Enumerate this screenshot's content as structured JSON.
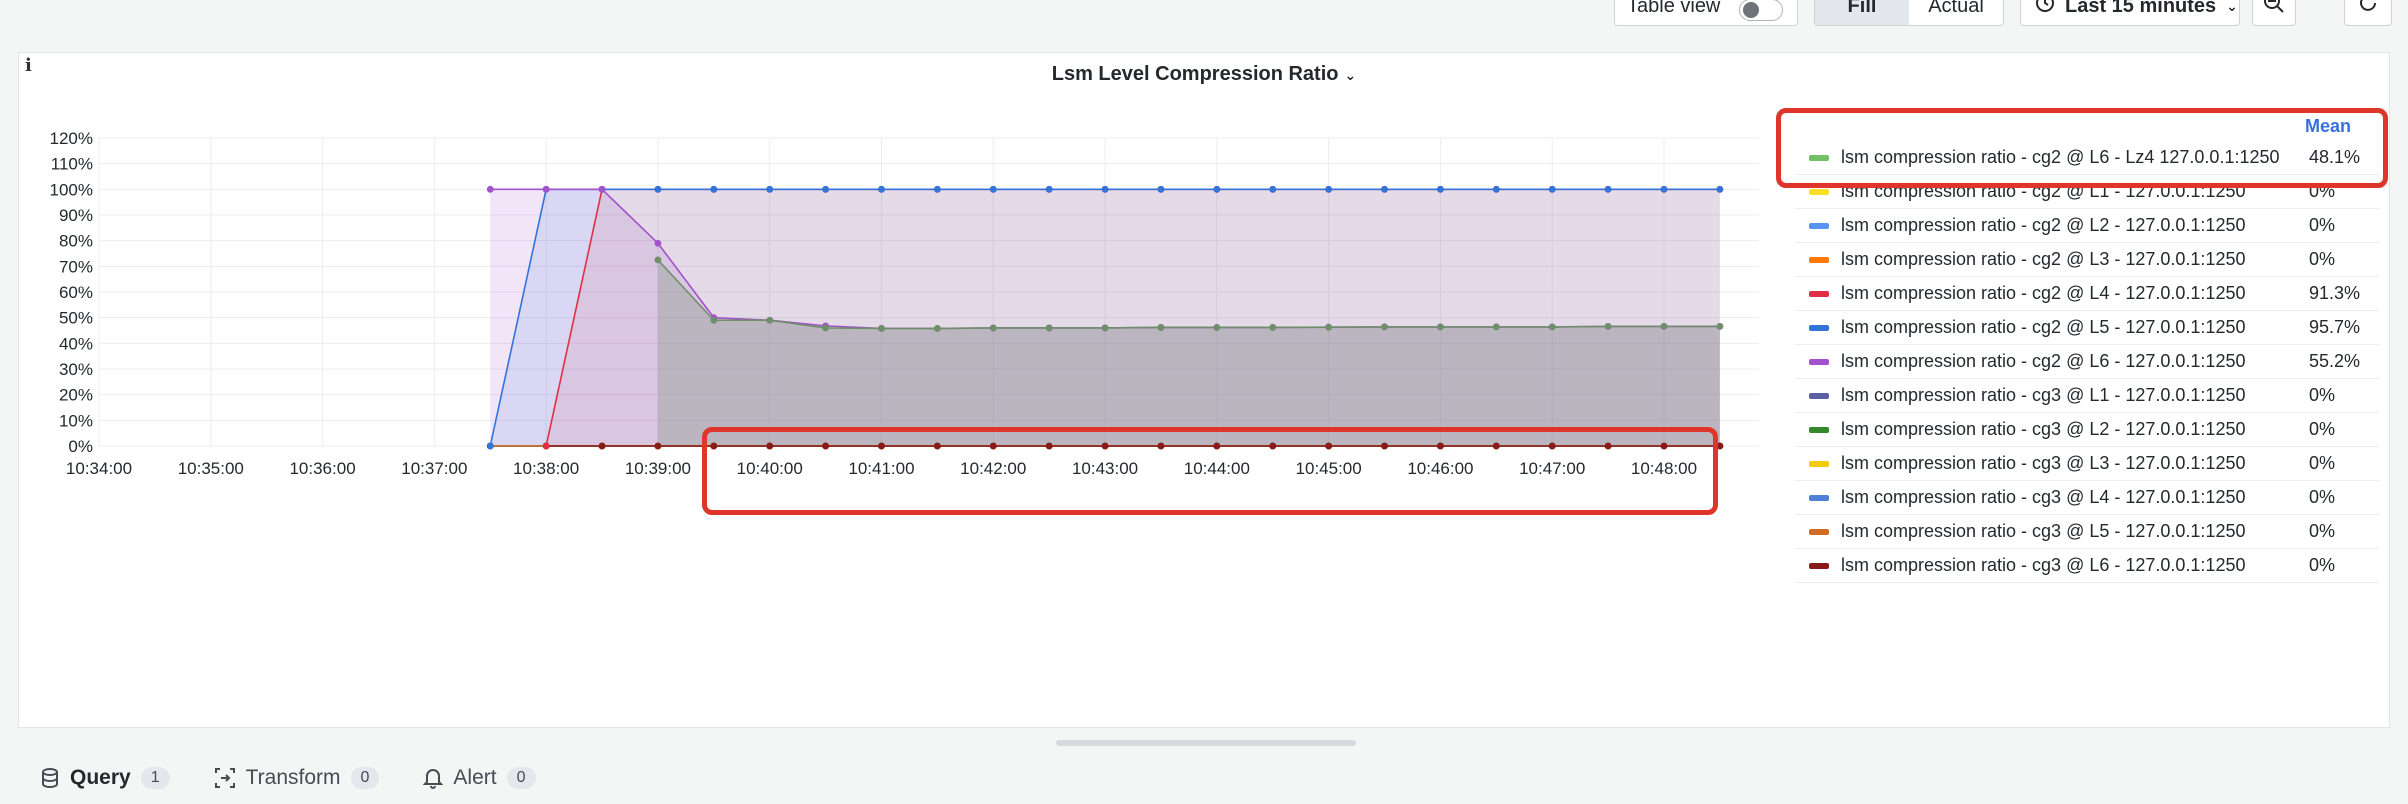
{
  "toolbar": {
    "table_view_label": "Table view",
    "fill_label": "Fill",
    "actual_label": "Actual",
    "time_range": "Last 15 minutes"
  },
  "panel": {
    "title": "Lsm Level Compression Ratio",
    "legend_header": "Mean"
  },
  "chart_data": {
    "type": "line",
    "title": "Lsm Level Compression Ratio",
    "xlabel": "",
    "ylabel": "",
    "ylim": [
      0,
      120
    ],
    "y_ticks": [
      "0%",
      "10%",
      "20%",
      "30%",
      "40%",
      "50%",
      "60%",
      "70%",
      "80%",
      "90%",
      "100%",
      "110%",
      "120%"
    ],
    "x_ticks": [
      "10:34:00",
      "10:35:00",
      "10:36:00",
      "10:37:00",
      "10:38:00",
      "10:39:00",
      "10:40:00",
      "10:41:00",
      "10:42:00",
      "10:43:00",
      "10:44:00",
      "10:45:00",
      "10:46:00",
      "10:47:00",
      "10:48:00"
    ],
    "x": [
      "10:37:30",
      "10:38:00",
      "10:38:30",
      "10:39:00",
      "10:39:30",
      "10:40:00",
      "10:40:30",
      "10:41:00",
      "10:41:30",
      "10:42:00",
      "10:42:30",
      "10:43:00",
      "10:43:30",
      "10:44:00",
      "10:44:30",
      "10:45:00",
      "10:45:30",
      "10:46:00",
      "10:46:30",
      "10:47:00",
      "10:47:30",
      "10:48:00",
      "10:48:30"
    ],
    "legend_position": "right",
    "grid": true,
    "series": [
      {
        "name": "lsm compression ratio - cg2 @ L6 - Lz4 127.0.0.1:1250",
        "mean": "48.1%",
        "color": "#73bf69",
        "values": [
          null,
          null,
          null,
          72.5,
          49,
          49,
          46,
          45.8,
          45.8,
          46,
          46,
          46,
          46.2,
          46.2,
          46.2,
          46.3,
          46.4,
          46.4,
          46.4,
          46.4,
          46.6,
          46.6,
          46.6
        ]
      },
      {
        "name": "lsm compression ratio - cg2 @ L1 - 127.0.0.1:1250",
        "mean": "0%",
        "color": "#fade2a",
        "values": [
          0,
          0,
          0,
          0,
          0,
          0,
          0,
          0,
          0,
          0,
          0,
          0,
          0,
          0,
          0,
          0,
          0,
          0,
          0,
          0,
          0,
          0,
          0
        ]
      },
      {
        "name": "lsm compression ratio - cg2 @ L2 - 127.0.0.1:1250",
        "mean": "0%",
        "color": "#5794f2",
        "values": [
          0,
          0,
          0,
          0,
          0,
          0,
          0,
          0,
          0,
          0,
          0,
          0,
          0,
          0,
          0,
          0,
          0,
          0,
          0,
          0,
          0,
          0,
          0
        ]
      },
      {
        "name": "lsm compression ratio - cg2 @ L3 - 127.0.0.1:1250",
        "mean": "0%",
        "color": "#ff780a",
        "values": [
          0,
          0,
          0,
          0,
          0,
          0,
          0,
          0,
          0,
          0,
          0,
          0,
          0,
          0,
          0,
          0,
          0,
          0,
          0,
          0,
          0,
          0,
          0
        ]
      },
      {
        "name": "lsm compression ratio - cg2 @ L4 - 127.0.0.1:1250",
        "mean": "91.3%",
        "color": "#e02f44",
        "values": [
          null,
          0,
          100,
          100,
          100,
          100,
          100,
          100,
          100,
          100,
          100,
          100,
          100,
          100,
          100,
          100,
          100,
          100,
          100,
          100,
          100,
          100,
          100
        ]
      },
      {
        "name": "lsm compression ratio - cg2 @ L5 - 127.0.0.1:1250",
        "mean": "95.7%",
        "color": "#3274d9",
        "values": [
          0,
          100,
          100,
          100,
          100,
          100,
          100,
          100,
          100,
          100,
          100,
          100,
          100,
          100,
          100,
          100,
          100,
          100,
          100,
          100,
          100,
          100,
          100
        ]
      },
      {
        "name": "lsm compression ratio - cg2 @ L6 - 127.0.0.1:1250",
        "mean": "55.2%",
        "color": "#a352cc",
        "values": [
          100,
          100,
          100,
          79,
          50,
          49,
          46.8,
          45.8,
          45.8,
          46,
          46,
          46,
          46.2,
          46.2,
          46.2,
          46.3,
          46.4,
          46.4,
          46.4,
          46.4,
          46.6,
          46.6,
          46.6
        ]
      },
      {
        "name": "lsm compression ratio - cg3 @ L1 - 127.0.0.1:1250",
        "mean": "0%",
        "color": "#5d5fa6",
        "values": [
          0,
          0,
          0,
          0,
          0,
          0,
          0,
          0,
          0,
          0,
          0,
          0,
          0,
          0,
          0,
          0,
          0,
          0,
          0,
          0,
          0,
          0,
          0
        ]
      },
      {
        "name": "lsm compression ratio - cg3 @ L2 - 127.0.0.1:1250",
        "mean": "0%",
        "color": "#37872d",
        "values": [
          0,
          0,
          0,
          0,
          0,
          0,
          0,
          0,
          0,
          0,
          0,
          0,
          0,
          0,
          0,
          0,
          0,
          0,
          0,
          0,
          0,
          0,
          0
        ]
      },
      {
        "name": "lsm compression ratio - cg3 @ L3 - 127.0.0.1:1250",
        "mean": "0%",
        "color": "#f2cc0c",
        "values": [
          0,
          0,
          0,
          0,
          0,
          0,
          0,
          0,
          0,
          0,
          0,
          0,
          0,
          0,
          0,
          0,
          0,
          0,
          0,
          0,
          0,
          0,
          0
        ]
      },
      {
        "name": "lsm compression ratio - cg3 @ L4 - 127.0.0.1:1250",
        "mean": "0%",
        "color": "#4f7fd6",
        "values": [
          0,
          0,
          0,
          0,
          0,
          0,
          0,
          0,
          0,
          0,
          0,
          0,
          0,
          0,
          0,
          0,
          0,
          0,
          0,
          0,
          0,
          0,
          0
        ]
      },
      {
        "name": "lsm compression ratio - cg3 @ L5 - 127.0.0.1:1250",
        "mean": "0%",
        "color": "#d16a23",
        "values": [
          0,
          0,
          0,
          0,
          0,
          0,
          0,
          0,
          0,
          0,
          0,
          0,
          0,
          0,
          0,
          0,
          0,
          0,
          0,
          0,
          0,
          0,
          0
        ]
      },
      {
        "name": "lsm compression ratio - cg3 @ L6 - 127.0.0.1:1250",
        "mean": "0%",
        "color": "#8a1a1a",
        "values": [
          null,
          0,
          0,
          0,
          0,
          0,
          0,
          0,
          0,
          0,
          0,
          0,
          0,
          0,
          0,
          0,
          0,
          0,
          0,
          0,
          0,
          0,
          0
        ]
      }
    ]
  },
  "tabs": [
    {
      "label": "Query",
      "count": "1",
      "icon": "database-icon"
    },
    {
      "label": "Transform",
      "count": "0",
      "icon": "transform-icon"
    },
    {
      "label": "Alert",
      "count": "0",
      "icon": "bell-icon"
    }
  ]
}
